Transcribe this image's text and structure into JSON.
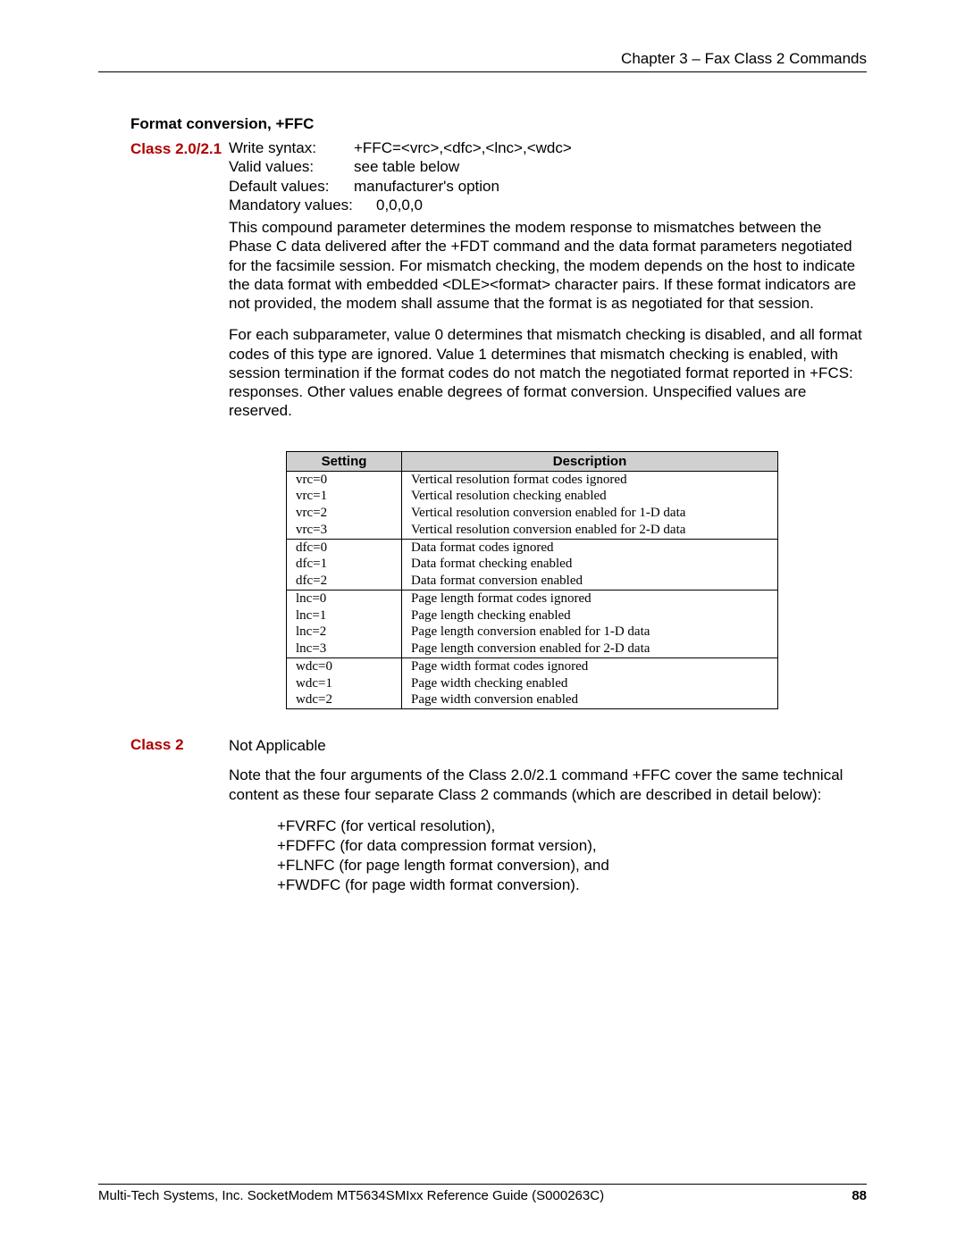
{
  "header": {
    "chapter": "Chapter 3 – Fax Class 2 Commands"
  },
  "section": {
    "title": "Format conversion, +FFC"
  },
  "class20": {
    "label": "Class 2.0/2.1",
    "write_syntax_key": "Write syntax:",
    "write_syntax_val": "+FFC=<vrc>,<dfc>,<lnc>,<wdc>",
    "valid_values_key": "Valid values:",
    "valid_values_val": "see table below",
    "default_values_key": "Default values:",
    "default_values_val": "manufacturer's option",
    "mandatory_key": "Mandatory values:",
    "mandatory_val": "0,0,0,0",
    "para1": "This compound parameter determines the modem response to mismatches between the Phase C data delivered after the +FDT command and the data format parameters negotiated for the facsimile session. For mismatch checking, the modem depends on the host to indicate the data format with embedded <DLE><format> character pairs. If these format indicators are not provided, the modem shall assume that the format is as negotiated for that session.",
    "para2": "For each subparameter, value 0 determines that mismatch checking is disabled, and all format codes of this type are ignored. Value 1 determines that mismatch checking is enabled, with session termination if the format codes do not match the negotiated format reported in +FCS: responses. Other values enable degrees of format conversion. Unspecified values are reserved."
  },
  "table": {
    "head_setting": "Setting",
    "head_desc": "Description",
    "groups": [
      [
        {
          "s": "vrc=0",
          "d": "Vertical resolution format codes ignored"
        },
        {
          "s": "vrc=1",
          "d": "Vertical resolution checking enabled"
        },
        {
          "s": "vrc=2",
          "d": "Vertical resolution conversion enabled for 1-D data"
        },
        {
          "s": "vrc=3",
          "d": "Vertical resolution conversion enabled for 2-D data"
        }
      ],
      [
        {
          "s": "dfc=0",
          "d": "Data format codes ignored"
        },
        {
          "s": "dfc=1",
          "d": "Data format checking enabled"
        },
        {
          "s": "dfc=2",
          "d": "Data format conversion enabled"
        }
      ],
      [
        {
          "s": "lnc=0",
          "d": "Page length format codes ignored"
        },
        {
          "s": "lnc=1",
          "d": "Page length checking enabled"
        },
        {
          "s": "lnc=2",
          "d": "Page length conversion enabled for 1-D data"
        },
        {
          "s": "lnc=3",
          "d": "Page length conversion enabled for 2-D data"
        }
      ],
      [
        {
          "s": "wdc=0",
          "d": "Page width format codes ignored"
        },
        {
          "s": "wdc=1",
          "d": "Page width checking enabled"
        },
        {
          "s": "wdc=2",
          "d": "Page width conversion enabled"
        }
      ]
    ]
  },
  "class2": {
    "label": "Class 2",
    "not_applicable": "Not Applicable",
    "note": "Note that the four arguments of the Class 2.0/2.1 command +FFC cover the same technical content as these four separate Class 2 commands (which are described in detail below):",
    "cmds": [
      "+FVRFC (for vertical resolution),",
      "+FDFFC (for data compression format version),",
      "+FLNFC  (for page length format conversion), and",
      "+FWDFC  (for page width format conversion)."
    ]
  },
  "footer": {
    "text": "Multi-Tech Systems, Inc. SocketModem MT5634SMIxx Reference Guide (S000263C)",
    "page": "88"
  }
}
